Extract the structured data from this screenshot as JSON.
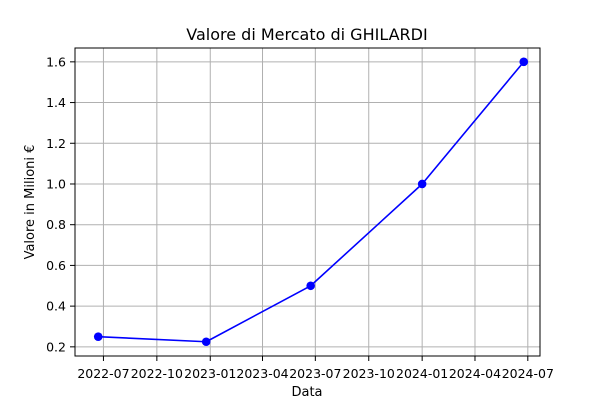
{
  "chart_data": {
    "type": "line",
    "title": "Valore di Mercato di GHILARDI",
    "xlabel": "Data",
    "ylabel": "Valore in Milioni €",
    "x_tick_labels": [
      "2022-07",
      "2022-10",
      "2023-01",
      "2023-04",
      "2023-07",
      "2023-10",
      "2024-01",
      "2024-04",
      "2024-07"
    ],
    "x_tick_dates": [
      "2022-07-01",
      "2022-10-01",
      "2023-01-01",
      "2023-04-01",
      "2023-07-01",
      "2023-10-01",
      "2024-01-01",
      "2024-04-01",
      "2024-07-01"
    ],
    "y_ticks": [
      0.2,
      0.4,
      0.6,
      0.8,
      1.0,
      1.2,
      1.4,
      1.6
    ],
    "y_tick_labels": [
      "0.2",
      "0.4",
      "0.6",
      "0.8",
      "1.0",
      "1.2",
      "1.4",
      "1.6"
    ],
    "xlim": [
      "2022-05-13",
      "2024-07-22"
    ],
    "ylim": [
      0.155,
      1.668
    ],
    "grid": true,
    "series": [
      {
        "color": "#0000ff",
        "marker": "circle",
        "x": [
          "2022-06-22",
          "2022-12-25",
          "2023-06-23",
          "2024-01-01",
          "2024-06-24"
        ],
        "y": [
          0.25,
          0.225,
          0.5,
          1.0,
          1.6
        ]
      }
    ]
  }
}
